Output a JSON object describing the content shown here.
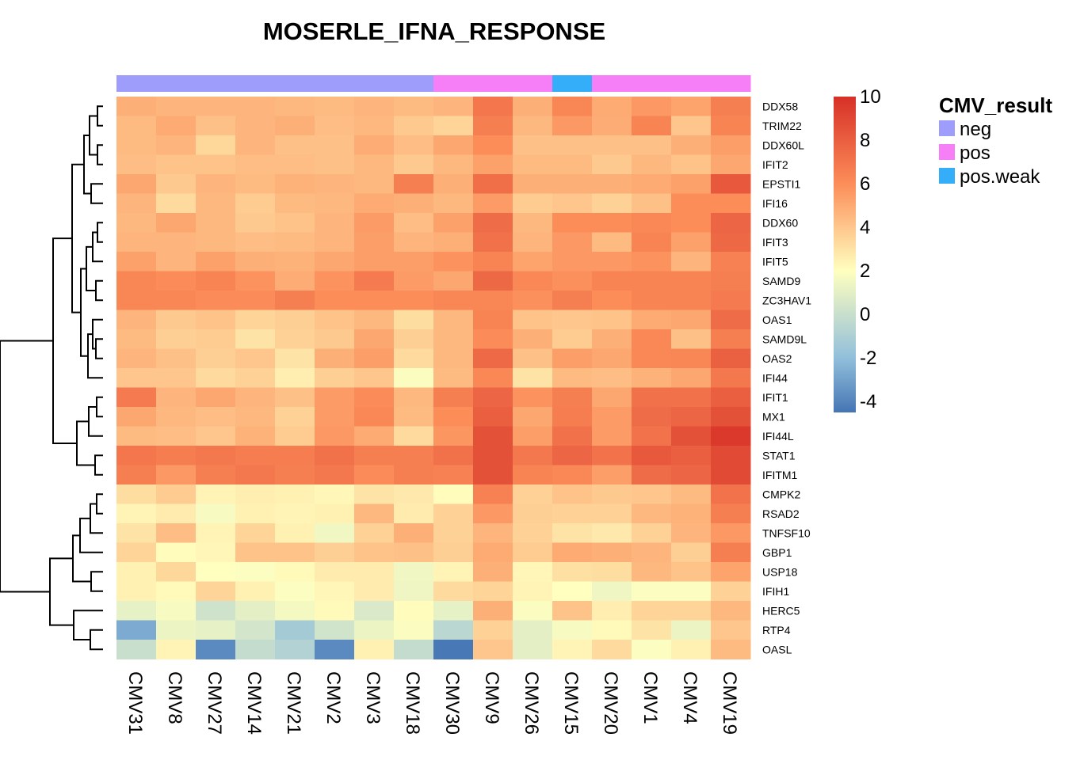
{
  "chart_data": {
    "type": "heatmap",
    "title": "MOSERLE_IFNA_RESPONSE",
    "columns": [
      "CMV31",
      "CMV8",
      "CMV27",
      "CMV14",
      "CMV21",
      "CMV2",
      "CMV3",
      "CMV18",
      "CMV30",
      "CMV9",
      "CMV26",
      "CMV15",
      "CMV20",
      "CMV1",
      "CMV4",
      "CMV19"
    ],
    "column_groups": [
      "neg",
      "neg",
      "neg",
      "neg",
      "neg",
      "neg",
      "neg",
      "neg",
      "pos",
      "pos",
      "pos",
      "pos.weak",
      "pos",
      "pos",
      "pos",
      "pos"
    ],
    "rows": [
      "DDX58",
      "TRIM22",
      "DDX60L",
      "IFIT2",
      "EPSTI1",
      "IFI16",
      "DDX60",
      "IFIT3",
      "IFIT5",
      "SAMD9",
      "ZC3HAV1",
      "OAS1",
      "SAMD9L",
      "OAS2",
      "IFI44",
      "IFIT1",
      "MX1",
      "IFI44L",
      "STAT1",
      "IFITM1",
      "CMPK2",
      "RSAD2",
      "TNFSF10",
      "GBP1",
      "USP18",
      "IFIH1",
      "HERC5",
      "RTP4",
      "OASL"
    ],
    "values": [
      [
        4.8,
        4.6,
        4.6,
        4.6,
        4.5,
        4.4,
        4.6,
        4.4,
        4.6,
        7.0,
        4.8,
        6.3,
        5.0,
        5.6,
        5.2,
        6.6
      ],
      [
        4.4,
        5.0,
        4.2,
        4.6,
        4.8,
        4.3,
        4.5,
        3.9,
        3.5,
        6.6,
        4.5,
        5.6,
        4.9,
        6.4,
        4.0,
        6.4
      ],
      [
        4.4,
        4.6,
        3.4,
        4.6,
        4.2,
        4.2,
        4.9,
        4.3,
        5.1,
        6.0,
        4.2,
        4.2,
        4.2,
        4.2,
        4.8,
        5.4
      ],
      [
        4.3,
        4.1,
        4.1,
        4.3,
        4.3,
        4.2,
        4.5,
        3.9,
        4.5,
        5.3,
        4.4,
        4.4,
        3.9,
        4.5,
        4.1,
        5.1
      ],
      [
        5.1,
        3.9,
        4.6,
        4.4,
        4.7,
        4.6,
        4.5,
        6.6,
        4.8,
        7.3,
        4.8,
        4.8,
        4.8,
        5.0,
        5.3,
        8.3
      ],
      [
        4.6,
        3.3,
        4.5,
        3.8,
        4.4,
        4.5,
        5.0,
        4.8,
        4.5,
        5.5,
        3.8,
        4.0,
        3.6,
        4.2,
        6.0,
        6.0
      ],
      [
        4.5,
        5.1,
        4.5,
        3.9,
        4.1,
        4.6,
        5.5,
        4.3,
        5.3,
        7.4,
        4.5,
        6.0,
        6.0,
        6.2,
        6.0,
        7.7
      ],
      [
        4.6,
        4.6,
        4.5,
        4.3,
        4.4,
        4.6,
        5.4,
        4.6,
        4.8,
        7.2,
        4.6,
        5.6,
        4.4,
        6.4,
        5.3,
        7.6
      ],
      [
        5.3,
        4.6,
        5.3,
        4.8,
        4.7,
        5.1,
        5.4,
        5.4,
        5.8,
        6.4,
        5.2,
        5.6,
        5.6,
        5.8,
        4.6,
        6.5
      ],
      [
        6.3,
        6.1,
        6.4,
        5.8,
        4.9,
        5.8,
        6.8,
        5.5,
        5.1,
        7.6,
        6.2,
        5.9,
        6.4,
        6.4,
        6.4,
        6.6
      ],
      [
        6.3,
        6.3,
        6.1,
        6.1,
        6.6,
        6.0,
        6.0,
        6.0,
        6.3,
        6.3,
        5.9,
        6.6,
        6.0,
        6.4,
        6.4,
        6.8
      ],
      [
        4.6,
        3.9,
        4.1,
        3.5,
        3.7,
        4.1,
        4.5,
        3.2,
        4.5,
        6.4,
        4.1,
        4.0,
        4.1,
        5.0,
        5.1,
        7.4
      ],
      [
        4.4,
        3.7,
        3.8,
        3.0,
        3.6,
        3.9,
        5.1,
        3.7,
        4.5,
        6.1,
        4.8,
        3.8,
        4.8,
        6.2,
        4.2,
        6.6
      ],
      [
        4.6,
        4.2,
        3.7,
        4.0,
        3.0,
        4.8,
        5.4,
        3.3,
        4.5,
        7.5,
        4.2,
        5.4,
        5.1,
        6.2,
        6.3,
        7.9
      ],
      [
        4.0,
        4.0,
        3.3,
        3.6,
        2.6,
        3.7,
        4.0,
        1.8,
        4.4,
        6.2,
        3.0,
        4.4,
        4.3,
        4.7,
        5.1,
        6.9
      ],
      [
        6.8,
        4.6,
        5.1,
        4.6,
        4.2,
        5.5,
        6.1,
        4.5,
        6.6,
        7.7,
        5.8,
        6.6,
        5.1,
        7.2,
        7.2,
        8.0
      ],
      [
        5.1,
        4.5,
        4.3,
        4.5,
        3.6,
        5.5,
        6.2,
        4.4,
        6.0,
        8.0,
        5.1,
        6.7,
        5.5,
        7.4,
        7.7,
        8.6
      ],
      [
        4.4,
        4.3,
        4.0,
        4.7,
        3.8,
        5.6,
        5.0,
        3.3,
        5.7,
        8.6,
        5.4,
        7.2,
        5.5,
        7.1,
        8.6,
        9.6
      ],
      [
        7.0,
        6.7,
        6.9,
        6.7,
        6.7,
        7.2,
        6.6,
        6.6,
        7.2,
        8.6,
        6.9,
        7.7,
        7.1,
        8.3,
        8.0,
        8.9
      ],
      [
        6.6,
        5.6,
        6.6,
        6.9,
        6.6,
        6.9,
        6.1,
        6.6,
        6.5,
        8.6,
        6.4,
        6.2,
        5.4,
        7.4,
        7.7,
        8.9
      ],
      [
        3.2,
        3.8,
        2.4,
        2.6,
        2.5,
        2.3,
        3.0,
        2.8,
        2.1,
        6.5,
        3.6,
        4.1,
        3.9,
        4.0,
        4.4,
        7.1
      ],
      [
        2.4,
        2.7,
        1.7,
        2.5,
        2.4,
        2.5,
        4.5,
        2.7,
        3.6,
        5.6,
        3.7,
        3.6,
        3.6,
        4.5,
        4.7,
        6.6
      ],
      [
        3.0,
        4.3,
        2.4,
        3.5,
        2.5,
        1.5,
        3.6,
        4.8,
        3.6,
        4.6,
        3.6,
        3.0,
        2.8,
        3.6,
        4.6,
        5.6
      ],
      [
        3.5,
        2.1,
        2.3,
        4.1,
        4.1,
        3.7,
        4.1,
        4.2,
        3.7,
        5.0,
        3.8,
        5.0,
        4.8,
        4.6,
        3.7,
        6.6
      ],
      [
        2.5,
        3.4,
        2.0,
        1.9,
        2.2,
        2.7,
        2.7,
        1.5,
        2.4,
        4.8,
        2.3,
        3.1,
        3.2,
        4.5,
        4.1,
        5.2
      ],
      [
        2.5,
        2.2,
        3.5,
        2.5,
        1.9,
        2.3,
        2.7,
        1.4,
        3.3,
        3.5,
        2.4,
        2.0,
        1.4,
        1.9,
        1.9,
        3.6
      ],
      [
        1.1,
        1.7,
        0.2,
        1.0,
        1.6,
        2.2,
        0.6,
        2.1,
        1.1,
        4.8,
        1.8,
        4.1,
        2.6,
        3.5,
        3.5,
        4.5
      ],
      [
        -2.7,
        1.3,
        1.1,
        0.4,
        -1.3,
        0.3,
        1.3,
        1.8,
        -0.5,
        3.6,
        1.0,
        1.7,
        2.2,
        3.0,
        1.3,
        4.0
      ],
      [
        0.0,
        2.4,
        -3.8,
        -0.2,
        -0.8,
        -3.8,
        2.5,
        -0.2,
        -4.4,
        4.0,
        1.0,
        2.4,
        3.3,
        1.9,
        2.5,
        4.4
      ]
    ],
    "color_scale": {
      "breaks": [
        -4.5,
        -2,
        2,
        6,
        10
      ],
      "colors": [
        "#4575b4",
        "#91bfdb",
        "#ffffbf",
        "#fc8d59",
        "#d73027"
      ],
      "ticks": [
        "10",
        "8",
        "6",
        "4",
        "2",
        "0",
        "-2",
        "-4"
      ]
    },
    "legend": {
      "title": "CMV_result",
      "placement": "right",
      "entries": [
        {
          "name": "neg",
          "color": "#9e9dfc"
        },
        {
          "name": "pos",
          "color": "#f67ef6"
        },
        {
          "name": "pos.weak",
          "color": "#35aefa"
        }
      ]
    },
    "row_dendrogram": true,
    "grid": false
  }
}
